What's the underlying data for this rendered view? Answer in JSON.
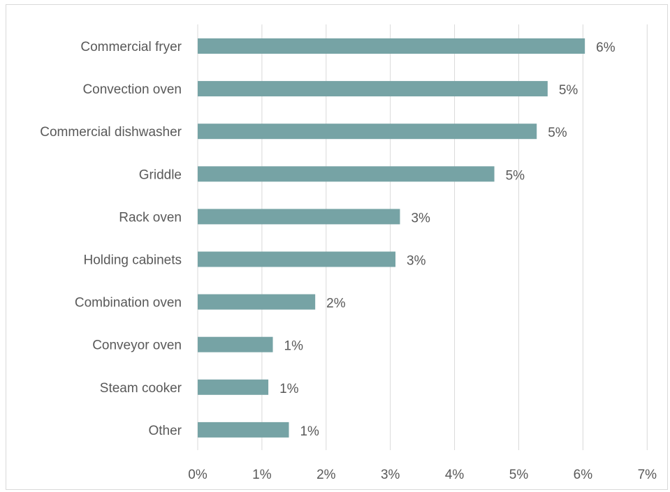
{
  "chart_data": {
    "type": "bar",
    "orientation": "horizontal",
    "title": "",
    "xlabel": "",
    "ylabel": "",
    "categories": [
      "Commercial fryer",
      "Convection oven ",
      "Commercial dishwasher",
      "Griddle",
      "Rack oven ",
      "Holding cabinets",
      "Combination oven",
      "Conveyor oven ",
      "Steam cooker",
      "Other"
    ],
    "values": [
      6.03,
      5.45,
      5.28,
      4.62,
      3.15,
      3.08,
      1.83,
      1.17,
      1.1,
      1.42
    ],
    "data_labels": [
      "6%",
      "5%",
      "5%",
      "5%",
      "3%",
      "3%",
      "2%",
      "1%",
      "1%",
      "1%"
    ],
    "xlim": [
      0,
      7
    ],
    "x_ticks": [
      "0%",
      "1%",
      "2%",
      "3%",
      "4%",
      "5%",
      "6%",
      "7%"
    ],
    "bar_color": "#76a3a5",
    "grid": true,
    "legend": "none"
  }
}
